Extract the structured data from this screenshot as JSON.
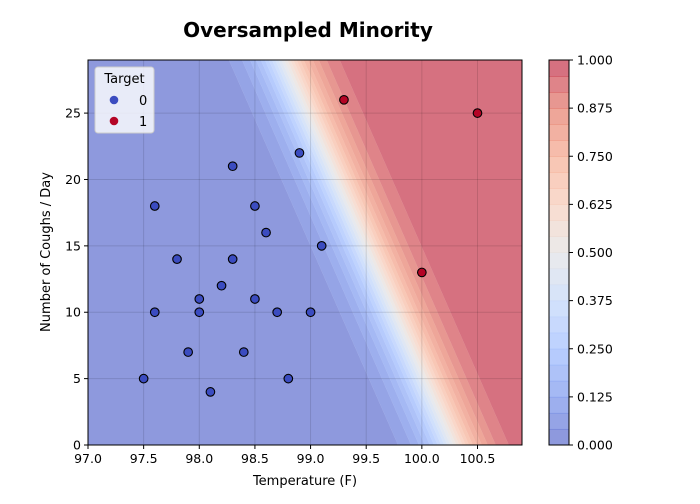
{
  "chart_data": {
    "type": "scatter",
    "title": "Oversampled Minority",
    "xlabel": "Temperature (F)",
    "ylabel": "Number of Coughs / Day",
    "xlim": [
      97.0,
      100.9
    ],
    "ylim": [
      0,
      29
    ],
    "x_ticks": [
      "97.0",
      "97.5",
      "98.0",
      "98.5",
      "99.0",
      "99.5",
      "100.0",
      "100.5"
    ],
    "y_ticks": [
      "0",
      "5",
      "10",
      "15",
      "20",
      "25"
    ],
    "grid": true,
    "colorbar": {
      "range": [
        0,
        1
      ],
      "ticks": [
        "0.000",
        "0.125",
        "0.250",
        "0.375",
        "0.500",
        "0.625",
        "0.750",
        "0.875",
        "1.000"
      ],
      "colormap": "coolwarm"
    },
    "legend": {
      "title": "Target",
      "placement": "top-left",
      "entries": [
        {
          "label": "0",
          "color": "#3b4cc0"
        },
        {
          "label": "1",
          "color": "#b40426"
        }
      ]
    },
    "series": [
      {
        "name": "0",
        "color": "#3b4cc0",
        "points": [
          {
            "x": 97.5,
            "y": 5
          },
          {
            "x": 97.6,
            "y": 10
          },
          {
            "x": 97.6,
            "y": 18
          },
          {
            "x": 97.8,
            "y": 14
          },
          {
            "x": 97.9,
            "y": 7
          },
          {
            "x": 98.0,
            "y": 11
          },
          {
            "x": 98.0,
            "y": 10
          },
          {
            "x": 98.1,
            "y": 4
          },
          {
            "x": 98.2,
            "y": 12
          },
          {
            "x": 98.3,
            "y": 21
          },
          {
            "x": 98.3,
            "y": 14
          },
          {
            "x": 98.4,
            "y": 7
          },
          {
            "x": 98.5,
            "y": 18
          },
          {
            "x": 98.5,
            "y": 11
          },
          {
            "x": 98.6,
            "y": 16
          },
          {
            "x": 98.7,
            "y": 10
          },
          {
            "x": 98.8,
            "y": 5
          },
          {
            "x": 98.9,
            "y": 22
          },
          {
            "x": 99.0,
            "y": 10
          },
          {
            "x": 99.1,
            "y": 15
          }
        ]
      },
      {
        "name": "1",
        "color": "#b40426",
        "points": [
          {
            "x": 99.3,
            "y": 26
          },
          {
            "x": 100.0,
            "y": 13
          },
          {
            "x": 100.5,
            "y": 25
          }
        ]
      }
    ],
    "decision_boundary": {
      "model": "logistic",
      "a": 6.3,
      "b": 0.33,
      "x0": 99.55,
      "y0": 14
    }
  }
}
